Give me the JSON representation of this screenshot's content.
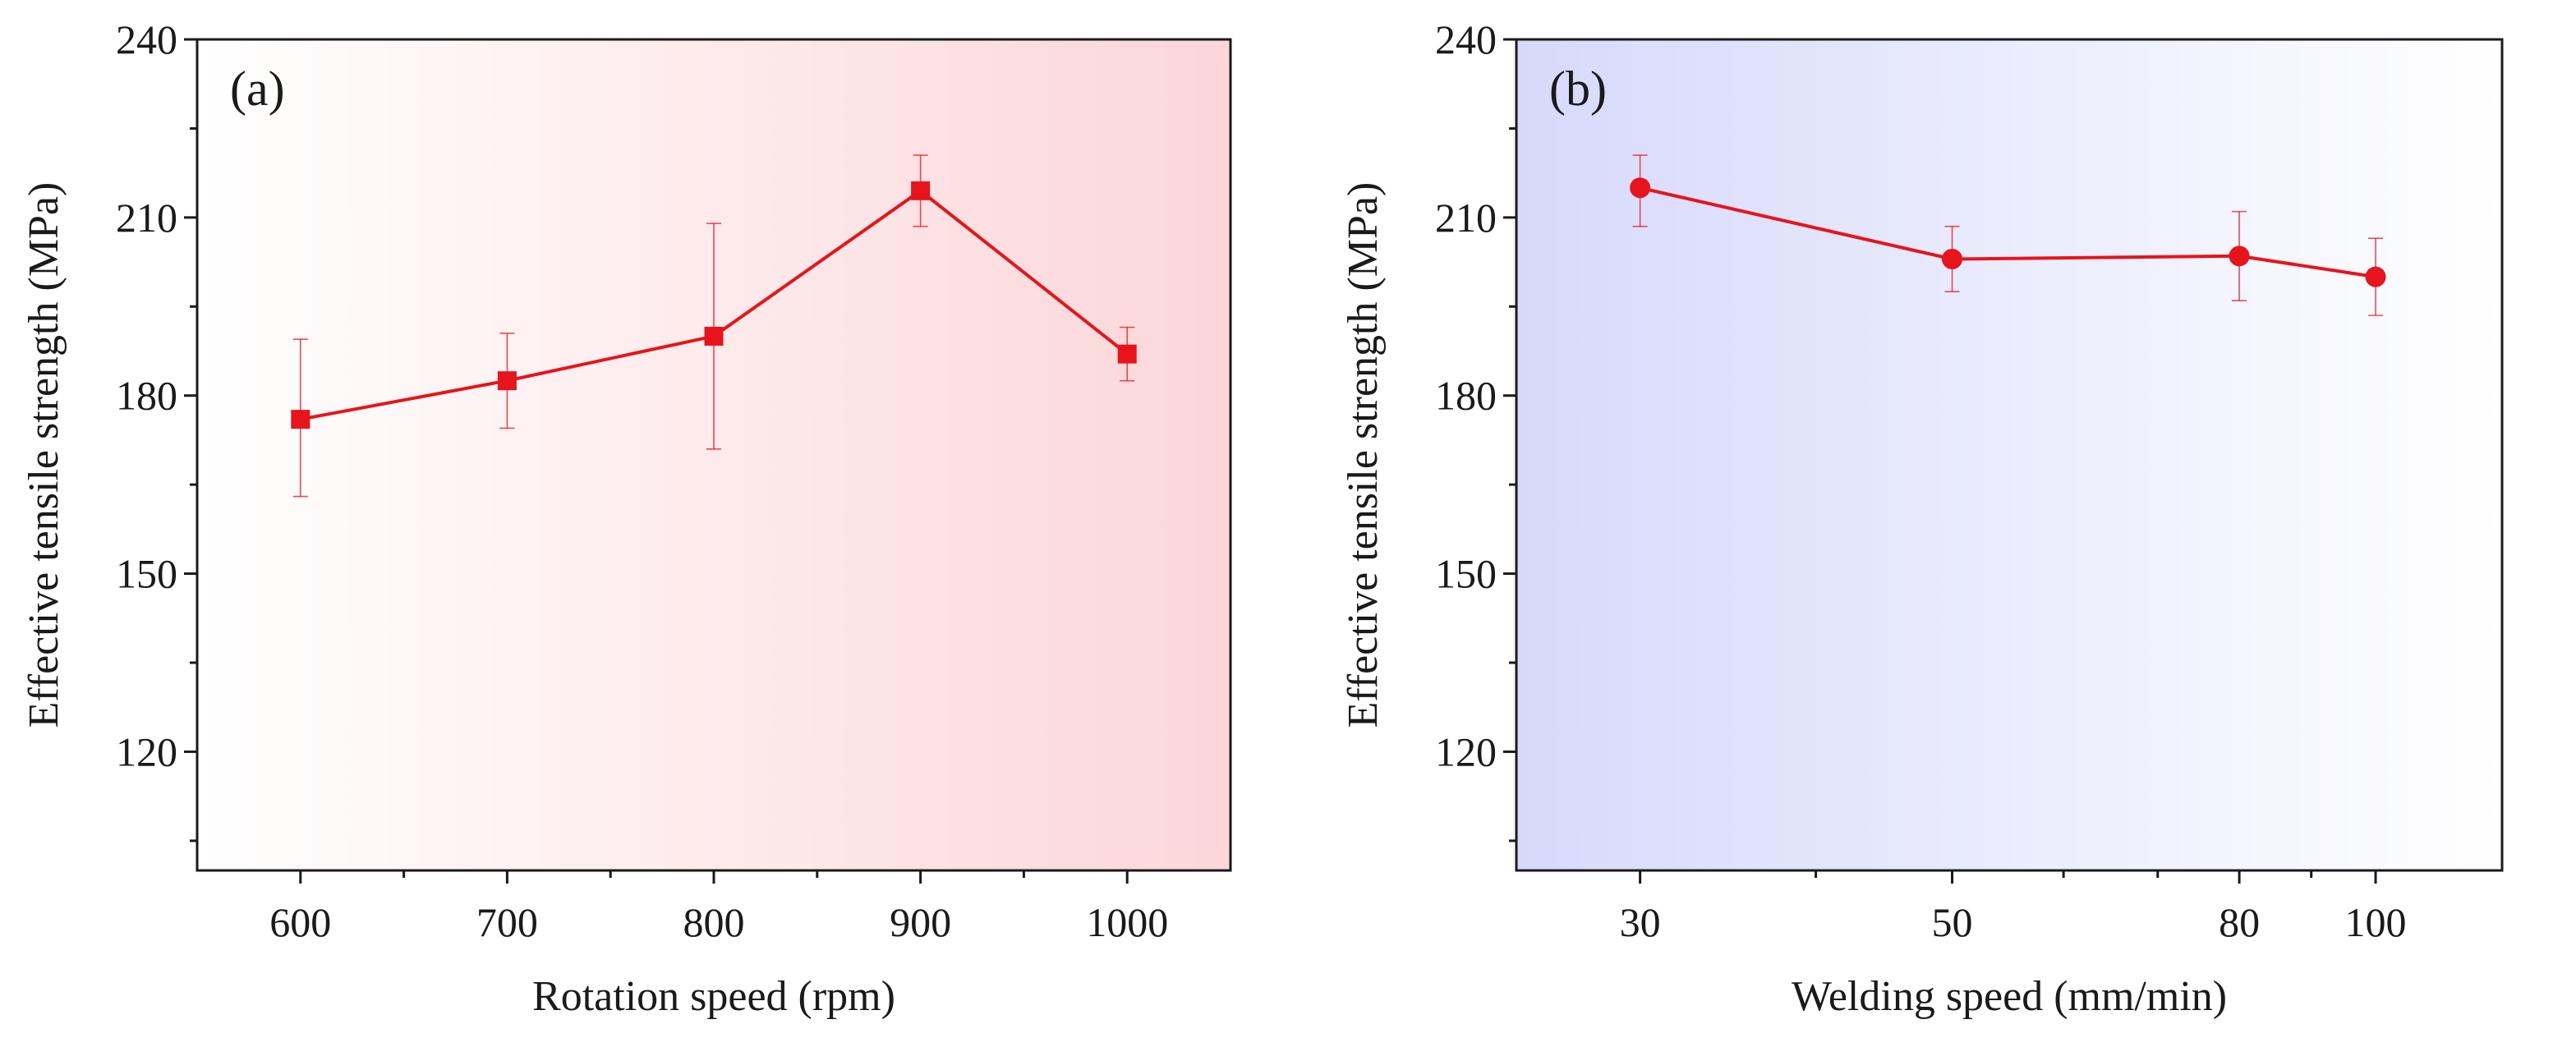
{
  "chart_data": [
    {
      "type": "line",
      "panel_label": "(a)",
      "xlabel": "Rotation speed (rpm)",
      "ylabel": "Effective tensile strength (MPa)",
      "x_scale": "linear",
      "xlim": [
        550,
        1050
      ],
      "ylim": [
        100,
        240
      ],
      "x_ticks": [
        600,
        700,
        800,
        900,
        1000
      ],
      "x_tick_labels": [
        "600",
        "700",
        "800",
        "900",
        "1000"
      ],
      "y_ticks": [
        120,
        150,
        180,
        210,
        240
      ],
      "y_tick_labels": [
        "120",
        "150",
        "180",
        "210",
        "240"
      ],
      "marker": "square",
      "color": "#e8141c",
      "background_gradient": [
        "#ffffff",
        "#fcd6d8"
      ],
      "series": [
        {
          "name": "Effective tensile strength",
          "x": [
            600,
            700,
            800,
            900,
            1000
          ],
          "y": [
            176,
            182.5,
            190,
            214.5,
            187
          ],
          "err_low": [
            163,
            174.5,
            171,
            208.5,
            182.5
          ],
          "err_high": [
            189.5,
            190.5,
            209,
            220.5,
            191.5
          ]
        }
      ]
    },
    {
      "type": "line",
      "panel_label": "(b)",
      "xlabel": "Welding speed (mm/min)",
      "ylabel": "Effective tensile strength (MPa)",
      "x_scale": "log",
      "xlim": [
        24.5,
        123
      ],
      "ylim": [
        100,
        240
      ],
      "x_ticks": [
        30,
        50,
        80,
        100
      ],
      "x_tick_labels": [
        "30",
        "50",
        "80",
        "100"
      ],
      "x_minor_ticks": [
        40,
        60,
        70,
        90
      ],
      "y_ticks": [
        120,
        150,
        180,
        210,
        240
      ],
      "y_tick_labels": [
        "120",
        "150",
        "180",
        "210",
        "240"
      ],
      "marker": "circle",
      "color": "#e8141c",
      "background_gradient": [
        "#d6d9fb",
        "#ffffff"
      ],
      "series": [
        {
          "name": "Effective tensile strength",
          "x": [
            30,
            50,
            80,
            100
          ],
          "y": [
            215,
            203,
            203.5,
            200
          ],
          "err_low": [
            208.5,
            197.5,
            196,
            193.5
          ],
          "err_high": [
            220.5,
            208.5,
            211,
            206.5
          ]
        }
      ]
    }
  ]
}
